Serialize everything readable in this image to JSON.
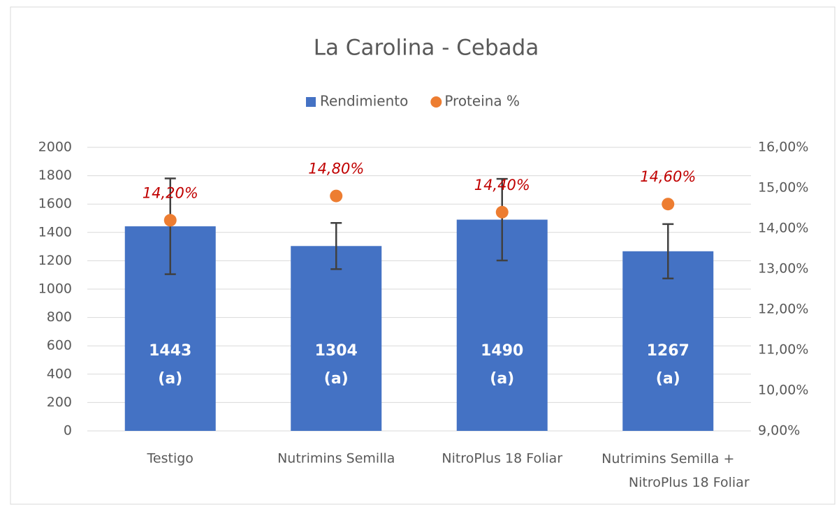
{
  "chart_data": {
    "type": "bar",
    "title": "La Carolina - Cebada",
    "categories": [
      "Testigo",
      "Nutrimins Semilla",
      "NitroPlus 18 Foliar",
      "Nutrimins Semilla +\nNitroPlus 18 Foliar"
    ],
    "series": [
      {
        "name": "Rendimiento",
        "type": "bar",
        "color": "#4472c4",
        "values": [
          1443,
          1304,
          1490,
          1267
        ],
        "errors": [
          338,
          163,
          288,
          192
        ],
        "groups": [
          "(a)",
          "(a)",
          "(a)",
          "(a)"
        ]
      },
      {
        "name": "Proteina %",
        "type": "scatter",
        "axis": "y2",
        "color": "#ed7d31",
        "values": [
          14.2,
          14.8,
          14.4,
          14.6
        ],
        "value_labels": [
          "14,20%",
          "14,80%",
          "14,40%",
          "14,60%"
        ],
        "label_color": "#c00000"
      }
    ],
    "ylim": [
      0,
      2000
    ],
    "yticks": [
      0,
      200,
      400,
      600,
      800,
      1000,
      1200,
      1400,
      1600,
      1800,
      2000
    ],
    "y2lim": [
      9,
      16
    ],
    "y2ticks": [
      {
        "value": 9,
        "label": "9,00%"
      },
      {
        "value": 10,
        "label": "10,00%"
      },
      {
        "value": 11,
        "label": "11,00%"
      },
      {
        "value": 12,
        "label": "12,00%"
      },
      {
        "value": 13,
        "label": "13,00%"
      },
      {
        "value": 14,
        "label": "14,00%"
      },
      {
        "value": 15,
        "label": "15,00%"
      },
      {
        "value": 16,
        "label": "16,00%"
      }
    ],
    "grid": true,
    "legend": "top"
  }
}
